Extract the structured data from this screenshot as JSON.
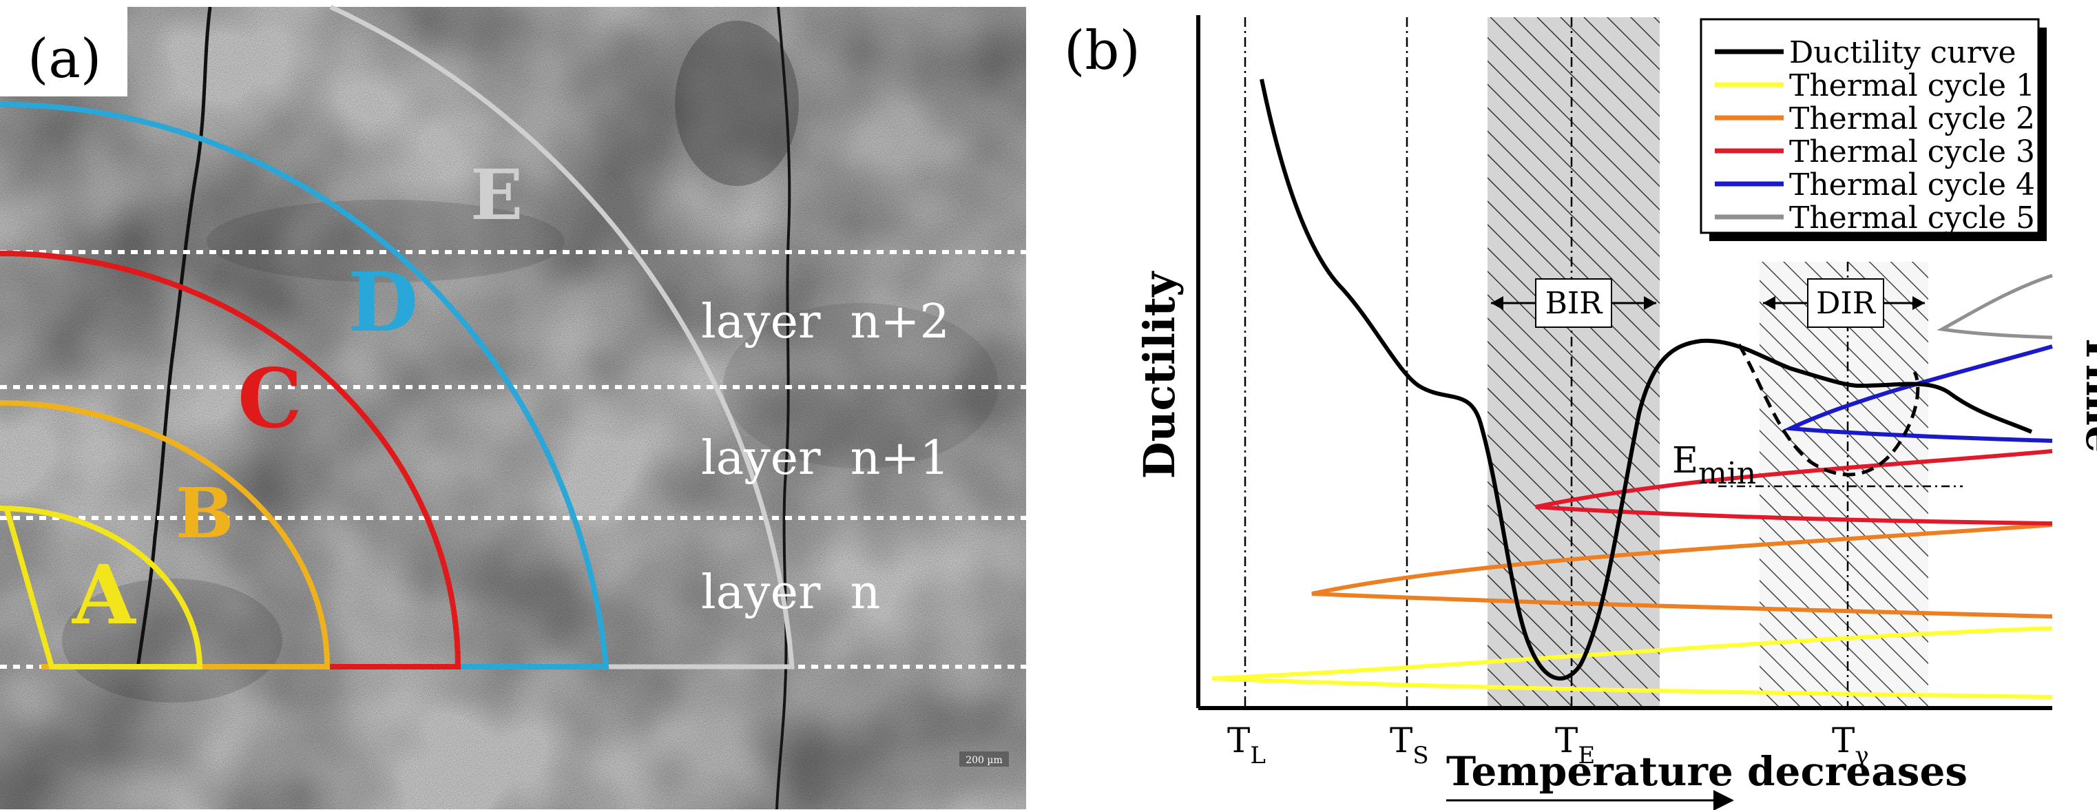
{
  "panel_a": {
    "label": "(a)",
    "regions": [
      {
        "id": "A",
        "label": "A",
        "color": "#f2e51c"
      },
      {
        "id": "B",
        "label": "B",
        "color": "#f0b21c"
      },
      {
        "id": "C",
        "label": "C",
        "color": "#e01a1a"
      },
      {
        "id": "D",
        "label": "D",
        "color": "#29a7d8"
      },
      {
        "id": "E",
        "label": "E",
        "color": "#cfcfcf"
      }
    ],
    "layers": [
      "layer  n",
      "layer  n+1",
      "layer  n+2"
    ],
    "scale_bar": "200 µm"
  },
  "panel_b": {
    "label": "(b)",
    "y_axis_label": "Ductility",
    "right_axis_label": "Time",
    "x_axis_label": "Temperature decreases",
    "temperature_markers": [
      {
        "main": "T",
        "sub": "L"
      },
      {
        "main": "T",
        "sub": "S"
      },
      {
        "main": "T",
        "sub": "E"
      },
      {
        "main": "T",
        "sub": "γ"
      }
    ],
    "bands": {
      "bir": "BIR",
      "dir": "DIR"
    },
    "emin": {
      "main": "E",
      "sub": "min"
    },
    "legend": [
      {
        "label": "Ductility curve",
        "color": "#000000"
      },
      {
        "label": "Thermal cycle 1",
        "color": "#ffff33"
      },
      {
        "label": "Thermal cycle 2",
        "color": "#ee7e22"
      },
      {
        "label": "Thermal cycle 3",
        "color": "#e01a2a"
      },
      {
        "label": "Thermal cycle 4",
        "color": "#1a1ac8"
      },
      {
        "label": "Thermal cycle 5",
        "color": "#909090"
      }
    ]
  }
}
